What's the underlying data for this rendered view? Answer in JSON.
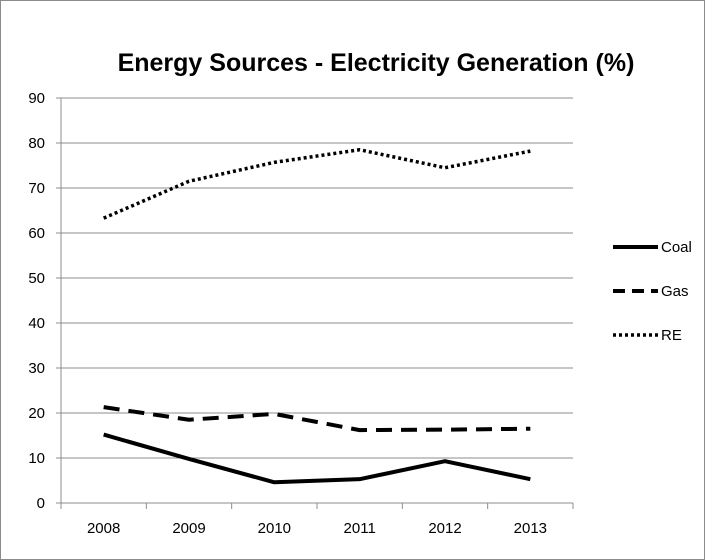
{
  "chart_data": {
    "type": "line",
    "title": "Energy Sources - Electricity Generation (%)",
    "xlabel": "",
    "ylabel": "",
    "categories": [
      "2008",
      "2009",
      "2010",
      "2011",
      "2012",
      "2013"
    ],
    "ylim": [
      0,
      90
    ],
    "yticks": [
      0,
      10,
      20,
      30,
      40,
      50,
      60,
      70,
      80,
      90
    ],
    "grid": "horizontal",
    "legend_position": "right",
    "series": [
      {
        "name": "Coal",
        "values": [
          15.2,
          9.8,
          4.6,
          5.3,
          9.3,
          5.3
        ],
        "style": "solid",
        "color": "#000000"
      },
      {
        "name": "Gas",
        "values": [
          21.3,
          18.5,
          19.8,
          16.2,
          16.3,
          16.5
        ],
        "style": "dashed",
        "color": "#000000"
      },
      {
        "name": "RE",
        "values": [
          63.3,
          71.5,
          75.7,
          78.5,
          74.5,
          78.2
        ],
        "style": "dotted",
        "color": "#000000"
      }
    ]
  }
}
